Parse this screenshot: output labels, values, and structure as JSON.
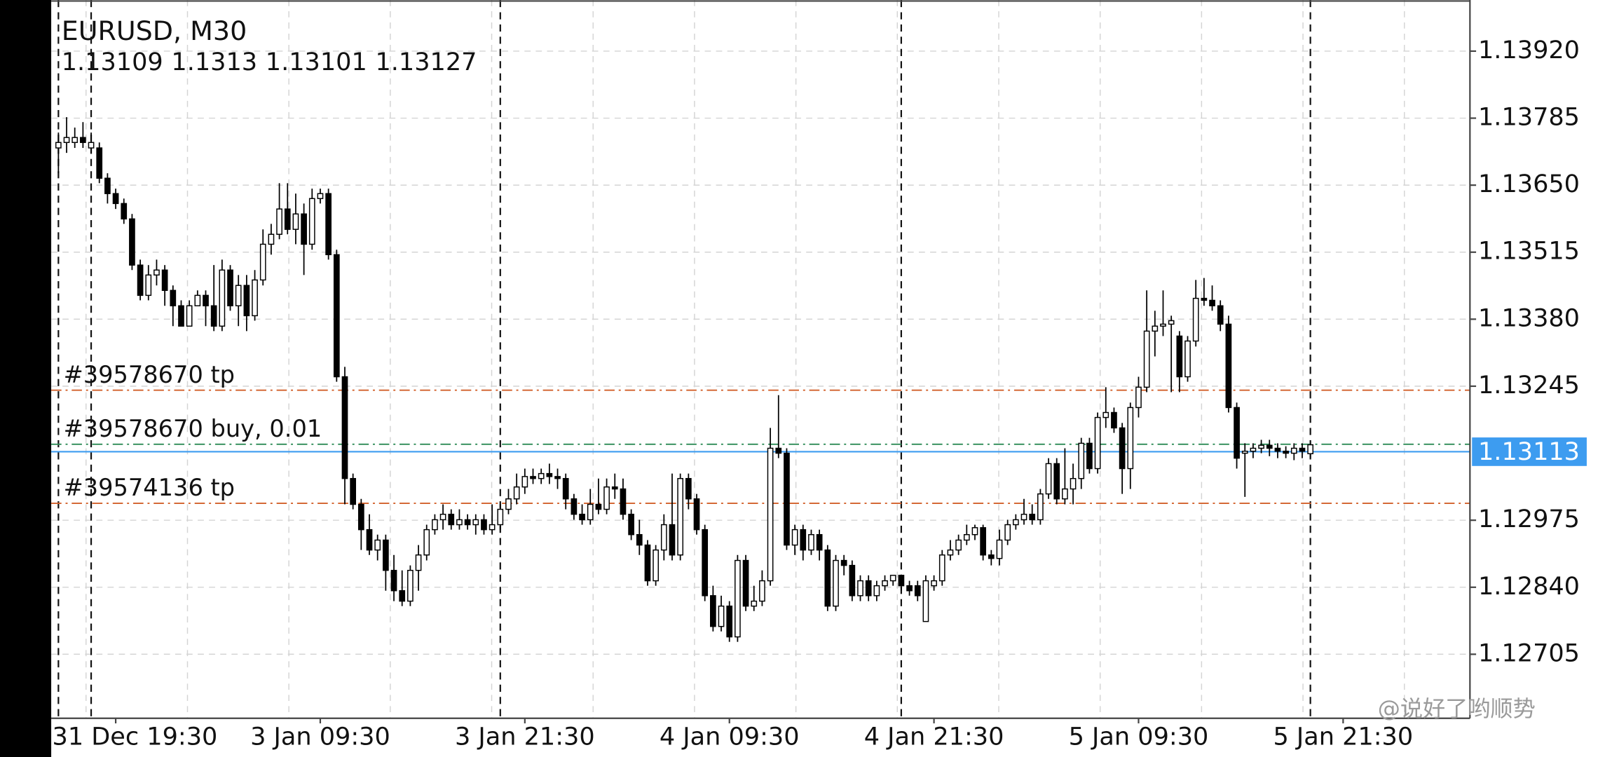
{
  "chart_data": {
    "type": "candlestick",
    "title": "EURUSD, M30",
    "watermark": "@说好了哟顺势",
    "bid": 1.13113,
    "bid_color": "#3d9cf0",
    "up_color": "#ffffff",
    "down_color": "#000000",
    "grid": true,
    "xlim": [
      -0.88,
      172.5
    ],
    "ylim": [
      1.12576,
      1.14023
    ],
    "yticks": [
      {
        "value": 1.1392,
        "label": "1.13920"
      },
      1.13785,
      {
        "value": 1.1365,
        "label": "1.13650"
      },
      1.13515,
      {
        "value": 1.1338,
        "label": "1.13380"
      },
      1.13245,
      1.12975,
      {
        "value": 1.1284,
        "label": "1.12840"
      },
      1.12705
    ],
    "xticks": [
      {
        "value": 7,
        "label": "31 Dec 19:30"
      },
      {
        "value": 32,
        "label": "3 Jan 09:30"
      },
      {
        "value": 57,
        "label": "3 Jan 21:30"
      },
      {
        "value": 82,
        "label": "4 Jan 09:30"
      },
      {
        "value": 107,
        "label": "4 Jan 21:30"
      },
      {
        "value": 132,
        "label": "5 Jan 09:30"
      },
      {
        "value": 157,
        "label": "5 Jan 21:30"
      }
    ],
    "separators": [
      0,
      4,
      54,
      103,
      153
    ],
    "order_lines": [
      {
        "label": "#39578670 tp",
        "value": 1.13237,
        "color": "#d2602a"
      },
      {
        "label": "#39578670 buy, 0.01",
        "value": 1.13128,
        "color": "#2e8b57"
      },
      {
        "label": "#39574136 tp",
        "value": 1.13009,
        "color": "#d2602a"
      }
    ],
    "open": [
      1.13725,
      1.13736,
      1.13736,
      1.13746,
      1.13725,
      1.13725,
      1.13664,
      1.13633,
      1.13613,
      1.13582,
      1.13489,
      1.13428,
      1.13469,
      1.13479,
      1.13438,
      1.13407,
      1.13366,
      1.13407,
      1.13428,
      1.13407,
      1.13366,
      1.13479,
      1.13407,
      1.13448,
      1.13387,
      1.13459,
      1.13531,
      1.13551,
      1.13602,
      1.13561,
      1.13592,
      1.13531,
      1.13623,
      1.13633,
      1.1351,
      1.13264,
      1.13059,
      1.13007,
      1.12956,
      1.12915,
      1.12935,
      1.12874,
      1.12833,
      1.12812,
      1.12874,
      1.12905,
      1.12956,
      1.12976,
      1.12987,
      1.12966,
      1.12976,
      1.12966,
      1.12976,
      1.12956,
      1.12966,
      1.12997,
      1.13018,
      1.13042,
      1.13063,
      1.13059,
      1.13069,
      1.13063,
      1.13059,
      1.13018,
      1.12987,
      1.12976,
      1.13007,
      1.12997,
      1.13042,
      1.13038,
      1.12987,
      1.12946,
      1.12925,
      1.12853,
      1.12915,
      1.12966,
      1.12905,
      1.13059,
      1.13018,
      1.12956,
      1.12823,
      1.12761,
      1.12802,
      1.1274,
      1.12894,
      1.12802,
      1.12812,
      1.12853,
      1.1312,
      1.1311,
      1.12925,
      1.12956,
      1.12915,
      1.12946,
      1.12915,
      1.12802,
      1.12894,
      1.12884,
      1.12823,
      1.12853,
      1.12823,
      1.12843,
      1.12853,
      1.12864,
      1.12843,
      1.12843,
      1.12771,
      1.12843,
      1.12853,
      1.12905,
      1.12915,
      1.12935,
      1.12946,
      1.1296,
      1.12905,
      1.12898,
      1.12935,
      1.12966,
      1.12976,
      1.12987,
      1.12976,
      1.13028,
      1.13089,
      1.13018,
      1.13038,
      1.13059,
      1.1313,
      1.13079,
      1.13182,
      1.13192,
      1.13161,
      1.13079,
      1.13202,
      1.13243,
      1.13356,
      1.13366,
      1.1337,
      1.13346,
      1.13264,
      1.13336,
      1.13422,
      1.13418,
      1.13407,
      1.1337,
      1.13202,
      1.1311,
      1.13114,
      1.1312,
      1.13126,
      1.1312,
      1.13114,
      1.1311,
      1.1312,
      1.13109
    ],
    "high": [
      1.13756,
      1.13787,
      1.13766,
      1.13777,
      1.13756,
      1.13736,
      1.13674,
      1.13643,
      1.13623,
      1.13592,
      1.135,
      1.13489,
      1.135,
      1.13489,
      1.13448,
      1.13418,
      1.13418,
      1.13438,
      1.13438,
      1.13489,
      1.135,
      1.13489,
      1.13469,
      1.13469,
      1.13479,
      1.13561,
      1.13572,
      1.13654,
      1.13654,
      1.13633,
      1.13613,
      1.13643,
      1.13643,
      1.13643,
      1.1352,
      1.13284,
      1.13069,
      1.13018,
      1.12987,
      1.12946,
      1.12946,
      1.12905,
      1.12874,
      1.12884,
      1.12925,
      1.12966,
      1.12987,
      1.13007,
      1.12997,
      1.12997,
      1.12987,
      1.12987,
      1.12987,
      1.13007,
      1.13007,
      1.13038,
      1.13069,
      1.13079,
      1.13079,
      1.13079,
      1.13089,
      1.13079,
      1.13069,
      1.13028,
      1.13007,
      1.13038,
      1.13059,
      1.13059,
      1.13069,
      1.13059,
      1.12997,
      1.12976,
      1.12935,
      1.12925,
      1.12987,
      1.13069,
      1.13069,
      1.13069,
      1.13028,
      1.12966,
      1.12843,
      1.12823,
      1.12812,
      1.12905,
      1.12905,
      1.12843,
      1.12874,
      1.13161,
      1.13227,
      1.1312,
      1.12966,
      1.12966,
      1.12956,
      1.12956,
      1.12925,
      1.12905,
      1.12905,
      1.12894,
      1.12864,
      1.12864,
      1.12853,
      1.12864,
      1.12864,
      1.12864,
      1.12853,
      1.12853,
      1.12864,
      1.12864,
      1.12915,
      1.12935,
      1.12946,
      1.12966,
      1.12966,
      1.12966,
      1.12915,
      1.12956,
      1.12976,
      1.12987,
      1.13018,
      1.13007,
      1.13038,
      1.131,
      1.131,
      1.1312,
      1.13089,
      1.13141,
      1.13141,
      1.13192,
      1.13243,
      1.13202,
      1.13171,
      1.13212,
      1.13264,
      1.13438,
      1.13397,
      1.13438,
      1.13387,
      1.13356,
      1.13346,
      1.13459,
      1.13463,
      1.13448,
      1.13418,
      1.13387,
      1.13212,
      1.1313,
      1.1313,
      1.13137,
      1.13137,
      1.1313,
      1.13124,
      1.1313,
      1.1313,
      1.1313
    ],
    "low": [
      1.13674,
      1.13715,
      1.13725,
      1.13725,
      1.13715,
      1.13654,
      1.13613,
      1.13602,
      1.13572,
      1.13479,
      1.13418,
      1.13418,
      1.13448,
      1.13407,
      1.13366,
      1.13366,
      1.13366,
      1.13407,
      1.13366,
      1.13356,
      1.13356,
      1.13397,
      1.13366,
      1.13356,
      1.13377,
      1.13448,
      1.1351,
      1.13541,
      1.13551,
      1.13531,
      1.13469,
      1.1352,
      1.13613,
      1.135,
      1.13254,
      1.13007,
      1.12997,
      1.12915,
      1.12905,
      1.12894,
      1.12833,
      1.12812,
      1.12802,
      1.12802,
      1.12833,
      1.12894,
      1.12946,
      1.12956,
      1.12956,
      1.12956,
      1.12956,
      1.12946,
      1.12946,
      1.12946,
      1.12956,
      1.12987,
      1.13007,
      1.13028,
      1.13048,
      1.13048,
      1.13048,
      1.13038,
      1.12997,
      1.12976,
      1.12966,
      1.12966,
      1.12987,
      1.12987,
      1.13018,
      1.12976,
      1.12935,
      1.12905,
      1.12843,
      1.12843,
      1.12894,
      1.12894,
      1.12894,
      1.12997,
      1.12946,
      1.12812,
      1.12751,
      1.12751,
      1.1273,
      1.1273,
      1.12792,
      1.12792,
      1.12802,
      1.12843,
      1.131,
      1.12915,
      1.12905,
      1.12894,
      1.12905,
      1.12894,
      1.12792,
      1.12792,
      1.12864,
      1.12812,
      1.12812,
      1.12812,
      1.12812,
      1.12833,
      1.12843,
      1.12833,
      1.12823,
      1.12812,
      1.12771,
      1.12833,
      1.12843,
      1.12894,
      1.12905,
      1.12925,
      1.12935,
      1.12894,
      1.12884,
      1.12884,
      1.12925,
      1.12956,
      1.12966,
      1.12966,
      1.12966,
      1.13018,
      1.13007,
      1.13007,
      1.13007,
      1.13038,
      1.13069,
      1.13069,
      1.13161,
      1.13151,
      1.13028,
      1.13038,
      1.13182,
      1.13233,
      1.13305,
      1.13346,
      1.13233,
      1.13233,
      1.13254,
      1.13325,
      1.13407,
      1.13397,
      1.13356,
      1.13192,
      1.13079,
      1.13022,
      1.131,
      1.1311,
      1.13104,
      1.131,
      1.131,
      1.13096,
      1.131,
      1.13101
    ],
    "close": [
      1.13736,
      1.13746,
      1.13746,
      1.13736,
      1.13736,
      1.13664,
      1.13633,
      1.13613,
      1.13582,
      1.13489,
      1.13428,
      1.13469,
      1.13479,
      1.13438,
      1.13407,
      1.13366,
      1.13407,
      1.13428,
      1.13407,
      1.13366,
      1.13479,
      1.13407,
      1.13448,
      1.13387,
      1.13459,
      1.13531,
      1.13551,
      1.13602,
      1.13561,
      1.13592,
      1.13531,
      1.13623,
      1.13633,
      1.1351,
      1.13264,
      1.13059,
      1.13007,
      1.12956,
      1.12915,
      1.12935,
      1.12874,
      1.12833,
      1.12812,
      1.12874,
      1.12905,
      1.12956,
      1.12976,
      1.12987,
      1.12966,
      1.12976,
      1.12966,
      1.12976,
      1.12956,
      1.12966,
      1.12997,
      1.13018,
      1.13042,
      1.13063,
      1.13059,
      1.13069,
      1.13063,
      1.13059,
      1.13018,
      1.12987,
      1.12976,
      1.13007,
      1.12997,
      1.13042,
      1.13038,
      1.12987,
      1.12946,
      1.12925,
      1.12853,
      1.12915,
      1.12966,
      1.12905,
      1.13059,
      1.13018,
      1.12956,
      1.12823,
      1.12761,
      1.12802,
      1.1274,
      1.12894,
      1.12802,
      1.12812,
      1.12853,
      1.1312,
      1.1311,
      1.12925,
      1.12956,
      1.12915,
      1.12946,
      1.12915,
      1.12802,
      1.12894,
      1.12884,
      1.12823,
      1.12853,
      1.12823,
      1.12843,
      1.12853,
      1.12864,
      1.12843,
      1.12833,
      1.12823,
      1.12853,
      1.12853,
      1.12905,
      1.12915,
      1.12935,
      1.12946,
      1.1296,
      1.12905,
      1.12898,
      1.12935,
      1.12966,
      1.12976,
      1.12987,
      1.12976,
      1.13028,
      1.13089,
      1.13018,
      1.13038,
      1.13059,
      1.1313,
      1.13079,
      1.13182,
      1.13192,
      1.13161,
      1.13079,
      1.13202,
      1.13243,
      1.13356,
      1.13366,
      1.1337,
      1.13377,
      1.13264,
      1.13336,
      1.13422,
      1.13418,
      1.13407,
      1.1337,
      1.13202,
      1.131,
      1.13114,
      1.1312,
      1.13126,
      1.1312,
      1.13114,
      1.1311,
      1.1312,
      1.13114,
      1.13127
    ]
  }
}
